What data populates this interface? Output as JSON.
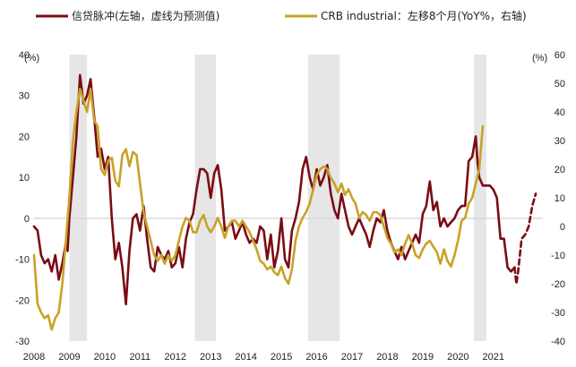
{
  "chart_data": {
    "type": "line",
    "colors": {
      "credit": "#7a0c14",
      "crb": "#c9a227",
      "recession": "#e6e6e6",
      "zero": "#d9d9d9"
    },
    "legend": [
      {
        "name": "信贷脉冲(左轴，虚线为预测值)",
        "color": "#7a0c14",
        "axis": "left"
      },
      {
        "name": "CRB industrial：左移8个月(YoY%，右轴)",
        "color": "#c9a227",
        "axis": "right"
      }
    ],
    "x_categories": [
      "2008",
      "2009",
      "2010",
      "2011",
      "2012",
      "2013",
      "2014",
      "2015",
      "2016",
      "2017",
      "2018",
      "2019",
      "2020",
      "2021"
    ],
    "x_range": [
      2008,
      2022.4
    ],
    "y_left": {
      "unit": "(%)",
      "range": [
        -30,
        40
      ],
      "ticks": [
        40,
        30,
        20,
        10,
        0,
        -10,
        -20,
        -30
      ]
    },
    "y_right": {
      "unit": "(%)",
      "range": [
        -40,
        60
      ],
      "ticks": [
        60,
        50,
        40,
        30,
        20,
        10,
        0,
        -10,
        -20,
        -30,
        -40
      ]
    },
    "shaded_periods": [
      [
        2009.0,
        2009.5
      ],
      [
        2012.55,
        2013.15
      ],
      [
        2015.75,
        2016.65
      ],
      [
        2020.45,
        2020.8
      ]
    ],
    "series": [
      {
        "name": "credit_impulse",
        "axis": "left",
        "points": [
          [
            2008.0,
            -2
          ],
          [
            2008.1,
            -3
          ],
          [
            2008.2,
            -9
          ],
          [
            2008.3,
            -11
          ],
          [
            2008.4,
            -10
          ],
          [
            2008.5,
            -13
          ],
          [
            2008.6,
            -9
          ],
          [
            2008.7,
            -15
          ],
          [
            2008.8,
            -11
          ],
          [
            2008.9,
            -6
          ],
          [
            2008.95,
            -8
          ],
          [
            2009.0,
            0
          ],
          [
            2009.1,
            10
          ],
          [
            2009.2,
            20
          ],
          [
            2009.3,
            35
          ],
          [
            2009.4,
            28
          ],
          [
            2009.5,
            30
          ],
          [
            2009.6,
            34
          ],
          [
            2009.7,
            25
          ],
          [
            2009.8,
            15
          ],
          [
            2009.9,
            17
          ],
          [
            2010.0,
            12
          ],
          [
            2010.1,
            15
          ],
          [
            2010.2,
            0
          ],
          [
            2010.3,
            -10
          ],
          [
            2010.4,
            -6
          ],
          [
            2010.5,
            -12
          ],
          [
            2010.6,
            -21
          ],
          [
            2010.7,
            -8
          ],
          [
            2010.8,
            0
          ],
          [
            2010.9,
            1
          ],
          [
            2011.0,
            -3
          ],
          [
            2011.1,
            3
          ],
          [
            2011.2,
            -5
          ],
          [
            2011.3,
            -12
          ],
          [
            2011.4,
            -13
          ],
          [
            2011.5,
            -7
          ],
          [
            2011.6,
            -9
          ],
          [
            2011.7,
            -10
          ],
          [
            2011.8,
            -8
          ],
          [
            2011.9,
            -12
          ],
          [
            2012.0,
            -11
          ],
          [
            2012.1,
            -7
          ],
          [
            2012.2,
            -12
          ],
          [
            2012.3,
            -5
          ],
          [
            2012.4,
            -1
          ],
          [
            2012.5,
            1
          ],
          [
            2012.6,
            7
          ],
          [
            2012.7,
            12
          ],
          [
            2012.8,
            12
          ],
          [
            2012.9,
            11
          ],
          [
            2013.0,
            5
          ],
          [
            2013.1,
            11
          ],
          [
            2013.2,
            13
          ],
          [
            2013.3,
            7
          ],
          [
            2013.4,
            -3
          ],
          [
            2013.5,
            -2
          ],
          [
            2013.6,
            -1
          ],
          [
            2013.7,
            -5
          ],
          [
            2013.8,
            -3
          ],
          [
            2013.9,
            -1
          ],
          [
            2014.0,
            -4
          ],
          [
            2014.1,
            -6
          ],
          [
            2014.2,
            -5
          ],
          [
            2014.3,
            -6
          ],
          [
            2014.4,
            -2
          ],
          [
            2014.5,
            -3
          ],
          [
            2014.6,
            -10
          ],
          [
            2014.7,
            -4
          ],
          [
            2014.8,
            -12
          ],
          [
            2014.9,
            -8
          ],
          [
            2015.0,
            0
          ],
          [
            2015.1,
            -10
          ],
          [
            2015.2,
            -12
          ],
          [
            2015.3,
            -3
          ],
          [
            2015.4,
            0
          ],
          [
            2015.5,
            4
          ],
          [
            2015.6,
            12
          ],
          [
            2015.7,
            15
          ],
          [
            2015.8,
            10
          ],
          [
            2015.9,
            7
          ],
          [
            2016.0,
            12
          ],
          [
            2016.1,
            8
          ],
          [
            2016.2,
            10
          ],
          [
            2016.3,
            13
          ],
          [
            2016.4,
            6
          ],
          [
            2016.5,
            2
          ],
          [
            2016.6,
            0
          ],
          [
            2016.7,
            6
          ],
          [
            2016.8,
            2
          ],
          [
            2016.9,
            -2
          ],
          [
            2017.0,
            -4
          ],
          [
            2017.1,
            -2
          ],
          [
            2017.2,
            0
          ],
          [
            2017.3,
            -2
          ],
          [
            2017.4,
            -4
          ],
          [
            2017.5,
            -7
          ],
          [
            2017.6,
            -3
          ],
          [
            2017.7,
            0
          ],
          [
            2017.8,
            -1
          ],
          [
            2017.9,
            2
          ],
          [
            2018.0,
            -3
          ],
          [
            2018.1,
            -6
          ],
          [
            2018.2,
            -8
          ],
          [
            2018.3,
            -10
          ],
          [
            2018.4,
            -7
          ],
          [
            2018.5,
            -10
          ],
          [
            2018.6,
            -8
          ],
          [
            2018.7,
            -6
          ],
          [
            2018.8,
            -4
          ],
          [
            2018.9,
            -6
          ],
          [
            2019.0,
            1
          ],
          [
            2019.1,
            3
          ],
          [
            2019.2,
            9
          ],
          [
            2019.3,
            2
          ],
          [
            2019.4,
            4
          ],
          [
            2019.5,
            -2
          ],
          [
            2019.6,
            0
          ],
          [
            2019.7,
            -2
          ],
          [
            2019.8,
            -1
          ],
          [
            2019.9,
            0
          ],
          [
            2020.0,
            2
          ],
          [
            2020.1,
            3
          ],
          [
            2020.2,
            3
          ],
          [
            2020.3,
            14
          ],
          [
            2020.4,
            15
          ],
          [
            2020.5,
            20
          ],
          [
            2020.55,
            14
          ],
          [
            2020.6,
            10
          ],
          [
            2020.7,
            8
          ],
          [
            2020.8,
            8
          ],
          [
            2020.9,
            8
          ],
          [
            2021.0,
            7
          ],
          [
            2021.1,
            5
          ],
          [
            2021.2,
            -5
          ],
          [
            2021.3,
            -5
          ],
          [
            2021.4,
            -12
          ],
          [
            2021.5,
            -13
          ],
          [
            2021.6,
            -12
          ]
        ]
      },
      {
        "name": "credit_impulse_forecast",
        "axis": "left",
        "dashed": true,
        "points": [
          [
            2021.6,
            -12
          ],
          [
            2021.65,
            -16
          ],
          [
            2021.7,
            -13
          ],
          [
            2021.8,
            -5
          ],
          [
            2021.9,
            -4
          ],
          [
            2022.0,
            -2
          ],
          [
            2022.1,
            3
          ],
          [
            2022.2,
            6
          ]
        ]
      },
      {
        "name": "crb_industrial",
        "axis": "right",
        "points": [
          [
            2008.0,
            -10
          ],
          [
            2008.1,
            -27
          ],
          [
            2008.2,
            -30
          ],
          [
            2008.3,
            -32
          ],
          [
            2008.4,
            -31
          ],
          [
            2008.5,
            -36
          ],
          [
            2008.6,
            -32
          ],
          [
            2008.7,
            -30
          ],
          [
            2008.8,
            -20
          ],
          [
            2008.9,
            -5
          ],
          [
            2009.0,
            10
          ],
          [
            2009.1,
            30
          ],
          [
            2009.2,
            40
          ],
          [
            2009.3,
            48
          ],
          [
            2009.4,
            44
          ],
          [
            2009.5,
            40
          ],
          [
            2009.6,
            48
          ],
          [
            2009.7,
            37
          ],
          [
            2009.8,
            35
          ],
          [
            2009.9,
            20
          ],
          [
            2010.0,
            18
          ],
          [
            2010.1,
            23
          ],
          [
            2010.2,
            24
          ],
          [
            2010.3,
            16
          ],
          [
            2010.4,
            14
          ],
          [
            2010.5,
            25
          ],
          [
            2010.6,
            27
          ],
          [
            2010.7,
            21
          ],
          [
            2010.8,
            26
          ],
          [
            2010.9,
            25
          ],
          [
            2011.0,
            15
          ],
          [
            2011.1,
            5
          ],
          [
            2011.2,
            0
          ],
          [
            2011.3,
            -5
          ],
          [
            2011.4,
            -10
          ],
          [
            2011.5,
            -12
          ],
          [
            2011.6,
            -10
          ],
          [
            2011.7,
            -13
          ],
          [
            2011.8,
            -10
          ],
          [
            2011.9,
            -12
          ],
          [
            2012.0,
            -10
          ],
          [
            2012.1,
            -5
          ],
          [
            2012.2,
            0
          ],
          [
            2012.3,
            3
          ],
          [
            2012.4,
            2
          ],
          [
            2012.5,
            -2
          ],
          [
            2012.6,
            -2
          ],
          [
            2012.7,
            2
          ],
          [
            2012.8,
            4
          ],
          [
            2012.9,
            0
          ],
          [
            2013.0,
            -2
          ],
          [
            2013.1,
            0
          ],
          [
            2013.2,
            3
          ],
          [
            2013.3,
            0
          ],
          [
            2013.4,
            -4
          ],
          [
            2013.5,
            0
          ],
          [
            2013.6,
            2
          ],
          [
            2013.7,
            2
          ],
          [
            2013.8,
            0
          ],
          [
            2013.9,
            2
          ],
          [
            2014.0,
            0
          ],
          [
            2014.1,
            -2
          ],
          [
            2014.2,
            -5
          ],
          [
            2014.3,
            -8
          ],
          [
            2014.4,
            -12
          ],
          [
            2014.5,
            -13
          ],
          [
            2014.6,
            -15
          ],
          [
            2014.7,
            -14
          ],
          [
            2014.8,
            -16
          ],
          [
            2014.9,
            -17
          ],
          [
            2015.0,
            -14
          ],
          [
            2015.1,
            -18
          ],
          [
            2015.2,
            -20
          ],
          [
            2015.3,
            -15
          ],
          [
            2015.4,
            -5
          ],
          [
            2015.5,
            0
          ],
          [
            2015.6,
            3
          ],
          [
            2015.7,
            5
          ],
          [
            2015.8,
            8
          ],
          [
            2015.9,
            13
          ],
          [
            2016.0,
            18
          ],
          [
            2016.1,
            20
          ],
          [
            2016.2,
            21
          ],
          [
            2016.3,
            20
          ],
          [
            2016.4,
            17
          ],
          [
            2016.5,
            15
          ],
          [
            2016.6,
            12
          ],
          [
            2016.7,
            15
          ],
          [
            2016.8,
            11
          ],
          [
            2016.9,
            13
          ],
          [
            2017.0,
            10
          ],
          [
            2017.1,
            8
          ],
          [
            2017.2,
            3
          ],
          [
            2017.3,
            5
          ],
          [
            2017.4,
            4
          ],
          [
            2017.5,
            2
          ],
          [
            2017.6,
            5
          ],
          [
            2017.7,
            5
          ],
          [
            2017.8,
            4
          ],
          [
            2017.9,
            0
          ],
          [
            2018.0,
            -4
          ],
          [
            2018.1,
            -6
          ],
          [
            2018.2,
            -9
          ],
          [
            2018.3,
            -8
          ],
          [
            2018.4,
            -10
          ],
          [
            2018.5,
            -6
          ],
          [
            2018.6,
            -3
          ],
          [
            2018.7,
            -6
          ],
          [
            2018.8,
            -10
          ],
          [
            2018.9,
            -11
          ],
          [
            2019.0,
            -8
          ],
          [
            2019.1,
            -6
          ],
          [
            2019.2,
            -5
          ],
          [
            2019.3,
            -7
          ],
          [
            2019.4,
            -9
          ],
          [
            2019.5,
            -13
          ],
          [
            2019.6,
            -8
          ],
          [
            2019.7,
            -12
          ],
          [
            2019.8,
            -14
          ],
          [
            2019.9,
            -10
          ],
          [
            2020.0,
            -5
          ],
          [
            2020.1,
            2
          ],
          [
            2020.2,
            3
          ],
          [
            2020.3,
            8
          ],
          [
            2020.4,
            10
          ],
          [
            2020.5,
            15
          ],
          [
            2020.6,
            20
          ],
          [
            2020.7,
            35
          ]
        ]
      }
    ]
  }
}
